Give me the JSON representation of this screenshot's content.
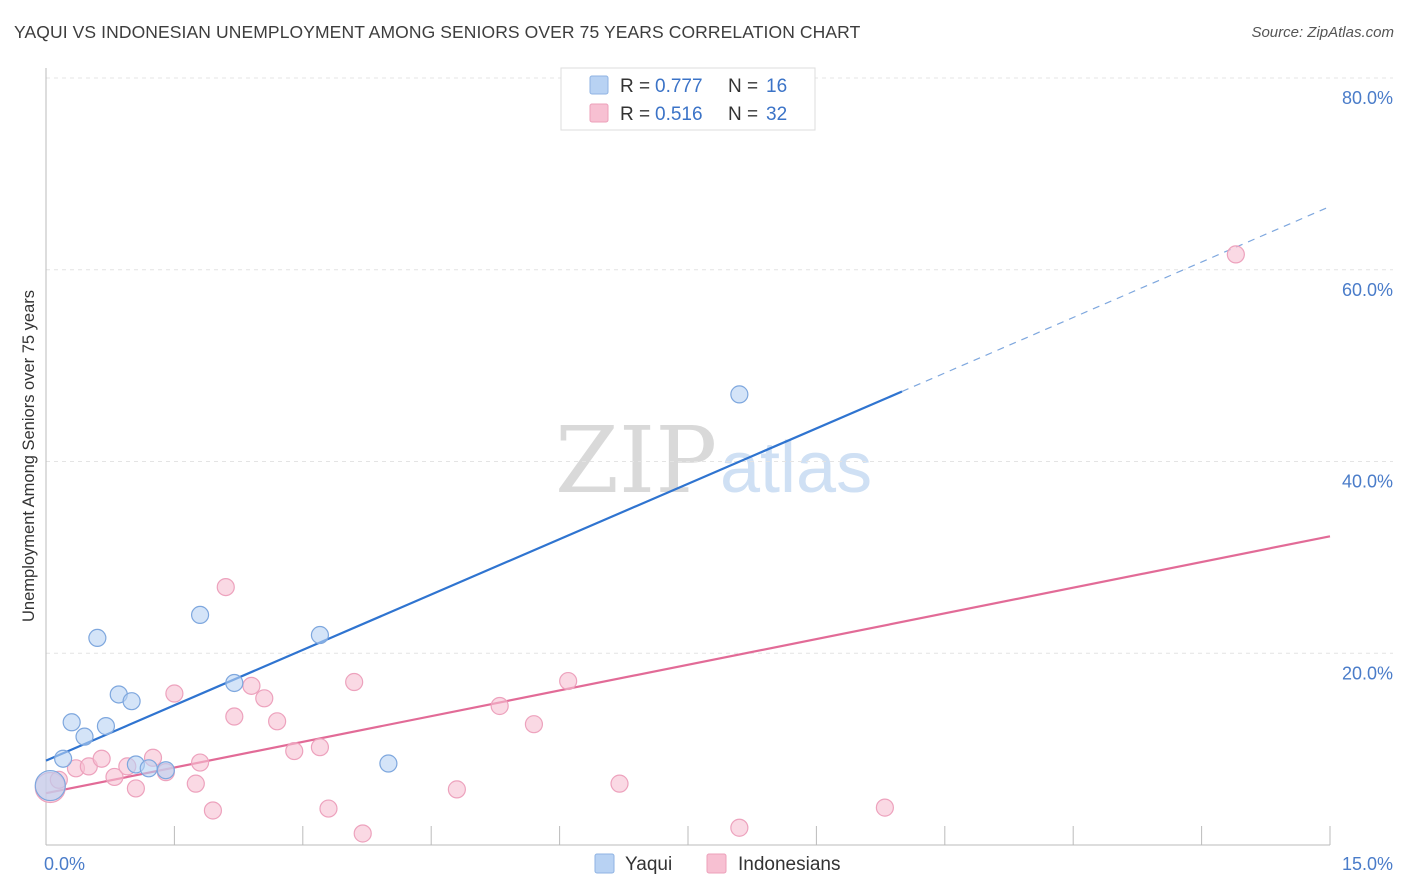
{
  "title": "YAQUI VS INDONESIAN UNEMPLOYMENT AMONG SENIORS OVER 75 YEARS CORRELATION CHART",
  "source": "Source: ZipAtlas.com",
  "watermark": {
    "zip": "ZIP",
    "atlas": "atlas"
  },
  "legend": {
    "rows": [
      {
        "r_label": "R = ",
        "r_value": "0.777",
        "n_label": "N = ",
        "n_value": "16"
      },
      {
        "r_label": "R = ",
        "r_value": "0.516",
        "n_label": "N = ",
        "n_value": "32"
      }
    ]
  },
  "bottom_legend": {
    "yaqui": "Yaqui",
    "indonesians": "Indonesians"
  },
  "chart_data": {
    "type": "scatter",
    "xlabel": "",
    "ylabel": "Unemployment Among Seniors over 75 years",
    "xlim": [
      0,
      15
    ],
    "ylim": [
      0,
      80
    ],
    "x_tick_labels": {
      "left": "0.0%",
      "right": "15.0%"
    },
    "y_tick_labels": [
      "20.0%",
      "40.0%",
      "60.0%",
      "80.0%"
    ],
    "y_ticks": [
      20,
      40,
      60,
      80
    ],
    "colors": {
      "yaqui": "#2f74d0",
      "yaqui_fill": "#b8d2f3",
      "indonesians": "#e26b97",
      "indonesians_fill": "#f7c0d2"
    },
    "series": [
      {
        "name": "Yaqui",
        "r": 0.777,
        "n": 16,
        "points": [
          [
            0.05,
            6.2
          ],
          [
            0.2,
            9.0
          ],
          [
            0.3,
            12.8
          ],
          [
            0.45,
            11.3
          ],
          [
            0.6,
            21.6
          ],
          [
            0.7,
            12.4
          ],
          [
            0.85,
            15.7
          ],
          [
            1.0,
            15.0
          ],
          [
            1.05,
            8.4
          ],
          [
            1.2,
            8.0
          ],
          [
            1.4,
            7.8
          ],
          [
            1.8,
            24.0
          ],
          [
            2.2,
            16.9
          ],
          [
            3.2,
            21.9
          ],
          [
            4.0,
            8.5
          ],
          [
            8.1,
            47.0
          ]
        ],
        "trend": {
          "x0": 0.0,
          "y0": 8.8,
          "x1": 10.0,
          "y1": 47.3,
          "dash_to_x": 15.0,
          "dash_to_y": 66.6
        }
      },
      {
        "name": "Indonesians",
        "r": 0.516,
        "n": 32,
        "points": [
          [
            0.05,
            6.0
          ],
          [
            0.15,
            6.8
          ],
          [
            0.35,
            8.0
          ],
          [
            0.5,
            8.2
          ],
          [
            0.65,
            9.0
          ],
          [
            0.8,
            7.1
          ],
          [
            0.95,
            8.2
          ],
          [
            1.05,
            5.9
          ],
          [
            1.25,
            9.1
          ],
          [
            1.4,
            7.6
          ],
          [
            1.5,
            15.8
          ],
          [
            1.75,
            6.4
          ],
          [
            1.8,
            8.6
          ],
          [
            1.95,
            3.6
          ],
          [
            2.1,
            26.9
          ],
          [
            2.2,
            13.4
          ],
          [
            2.4,
            16.6
          ],
          [
            2.55,
            15.3
          ],
          [
            2.7,
            12.9
          ],
          [
            2.9,
            9.8
          ],
          [
            3.2,
            10.2
          ],
          [
            3.3,
            3.8
          ],
          [
            3.6,
            17.0
          ],
          [
            3.7,
            1.2
          ],
          [
            4.8,
            5.8
          ],
          [
            5.3,
            14.5
          ],
          [
            5.7,
            12.6
          ],
          [
            6.1,
            17.1
          ],
          [
            6.7,
            6.4
          ],
          [
            8.1,
            1.8
          ],
          [
            9.8,
            3.9
          ],
          [
            13.9,
            61.6
          ]
        ],
        "trend": {
          "x0": 0.0,
          "y0": 5.4,
          "x1": 15.0,
          "y1": 32.2
        }
      }
    ]
  }
}
